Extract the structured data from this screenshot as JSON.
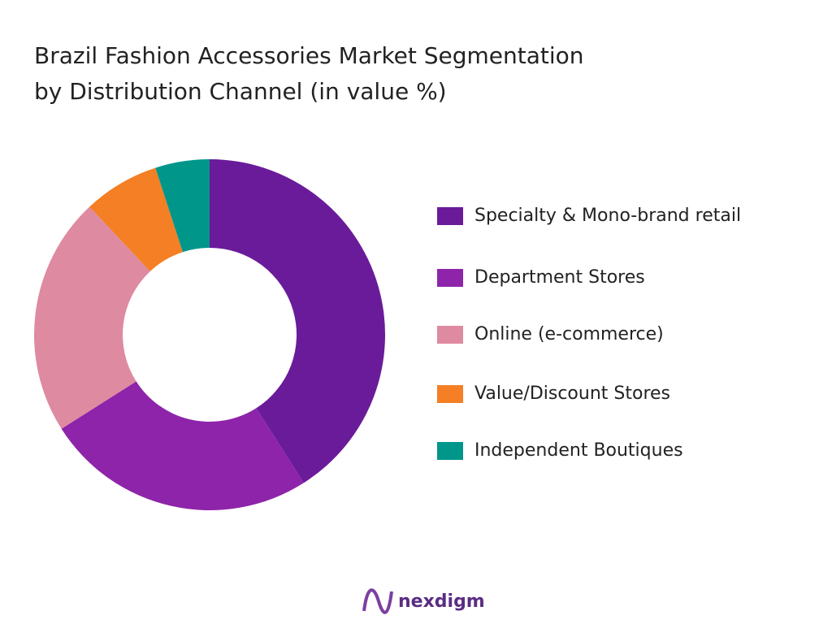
{
  "chart_data": {
    "type": "donut",
    "title": [
      "Brazil Fashion Accessories Market Segmentation",
      "by Distribution Channel (in value %)"
    ],
    "categories": [
      "Specialty & Mono-brand retail",
      "Department Stores",
      "Online (e-commerce)",
      "Value/Discount Stores",
      "Independent Boutiques"
    ],
    "values": [
      41,
      25,
      22,
      7,
      5
    ],
    "colors": [
      "#6a1b9a",
      "#8e24aa",
      "#de8aa1",
      "#f47f24",
      "#00968a"
    ],
    "legend": "right"
  },
  "footer": {
    "brand": "nexdigm"
  }
}
